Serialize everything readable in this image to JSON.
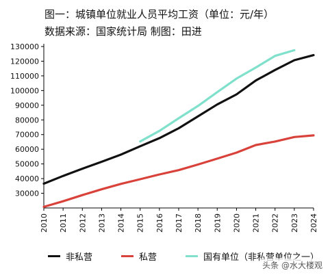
{
  "title_line": "图一：城镇单位就业人员平均工资（单位：元/年）",
  "subtitle_line": "数据来源：国家统计局 制图：田进",
  "watermark": "头条 @水大楼观",
  "colors": {
    "series_black": "#111111",
    "series_red": "#d9423a",
    "series_teal": "#7fe0cc",
    "axis": "#000000"
  },
  "chart_data": {
    "type": "line",
    "title": "城镇单位就业人员平均工资（单位：元/年）",
    "xlabel": "",
    "ylabel": "",
    "ylim": [
      20000,
      130000
    ],
    "yticks": [
      30000,
      40000,
      50000,
      60000,
      70000,
      80000,
      90000,
      100000,
      110000,
      120000,
      130000
    ],
    "x": [
      2010,
      2011,
      2012,
      2013,
      2014,
      2015,
      2016,
      2017,
      2018,
      2019,
      2020,
      2021,
      2022,
      2023,
      2024
    ],
    "legend_position": "bottom",
    "grid": false,
    "series": [
      {
        "name": "非私营",
        "color": "#111111",
        "x": [
          2010,
          2011,
          2012,
          2013,
          2014,
          2015,
          2016,
          2017,
          2018,
          2019,
          2020,
          2021,
          2022,
          2023,
          2024
        ],
        "values": [
          36539,
          41799,
          46769,
          51483,
          56360,
          62029,
          67569,
          74318,
          82413,
          90501,
          97379,
          106837,
          114029,
          120698,
          124110
        ]
      },
      {
        "name": "私营",
        "color": "#d9423a",
        "x": [
          2010,
          2011,
          2012,
          2013,
          2014,
          2015,
          2016,
          2017,
          2018,
          2019,
          2020,
          2021,
          2022,
          2023,
          2024
        ],
        "values": [
          20759,
          24556,
          28752,
          32706,
          36390,
          39589,
          42833,
          45761,
          49575,
          53604,
          57727,
          62884,
          65237,
          68340,
          69476
        ]
      },
      {
        "name": "国有单位（非私营单位之一）",
        "color": "#7fe0cc",
        "x": [
          2015,
          2016,
          2017,
          2018,
          2019,
          2020,
          2021,
          2022,
          2023
        ],
        "values": [
          65296,
          72538,
          81114,
          89474,
          98899,
          108132,
          115683,
          123622,
          127500
        ]
      }
    ]
  }
}
